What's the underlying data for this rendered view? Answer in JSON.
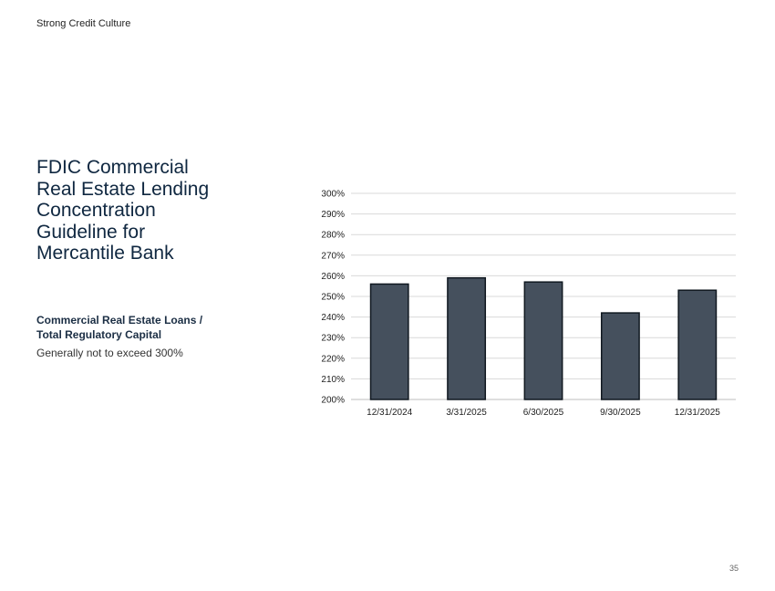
{
  "header": {
    "section_label": "Strong Credit Culture"
  },
  "title": {
    "lines": [
      "FDIC Commercial",
      "Real Estate Lending",
      "Concentration",
      "Guideline for",
      "Mercantile Bank"
    ]
  },
  "subhead": {
    "lines": [
      "Commercial Real Estate Loans /",
      "Total Regulatory Capital"
    ]
  },
  "note": "Generally not to exceed 300%",
  "page_number": "35",
  "chart_data": {
    "type": "bar",
    "categories": [
      "12/31/2024",
      "3/31/2025",
      "6/30/2025",
      "9/30/2025",
      "12/31/2025"
    ],
    "values": [
      256,
      259,
      257,
      242,
      253
    ],
    "ylim": [
      200,
      300
    ],
    "yticks": [
      "200%",
      "210%",
      "220%",
      "230%",
      "240%",
      "250%",
      "260%",
      "270%",
      "280%",
      "290%",
      "300%"
    ],
    "grid": true,
    "bar_color": "#45505d",
    "bar_edge_color": "#101820"
  }
}
